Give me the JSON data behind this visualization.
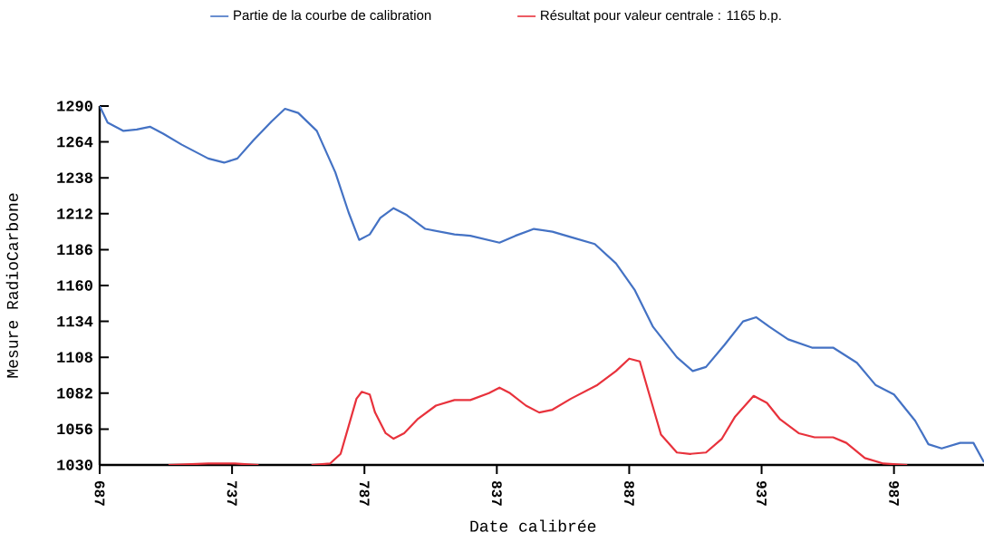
{
  "chart_data": {
    "type": "line",
    "xlabel": "Date calibrée",
    "ylabel": "Mesure RadioCarbone",
    "xlim": [
      687,
      1021
    ],
    "ylim": [
      1030,
      1290
    ],
    "xticks": [
      687,
      737,
      787,
      837,
      887,
      937,
      987
    ],
    "yticks": [
      1030,
      1056,
      1082,
      1108,
      1134,
      1160,
      1186,
      1212,
      1238,
      1264,
      1290
    ],
    "legend": "top",
    "grid": false,
    "marker": "none",
    "line_style": "solid",
    "series": [
      {
        "name": "Partie de la courbe de calibration",
        "color": "#4472c4",
        "x": [
          687,
          690,
          696,
          701,
          706,
          711,
          718,
          728,
          734,
          739,
          745,
          752,
          757,
          762,
          769,
          776,
          781,
          785,
          789,
          793,
          798,
          803,
          810,
          821,
          827,
          838,
          844,
          851,
          858,
          865,
          874,
          882,
          889,
          896,
          905,
          911,
          916,
          923,
          930,
          935,
          940,
          947,
          956,
          964,
          973,
          980,
          987,
          995,
          1000,
          1005,
          1012,
          1017,
          1021
        ],
        "values": [
          1290,
          1278,
          1272,
          1273,
          1275,
          1270,
          1262,
          1252,
          1249,
          1252,
          1265,
          1279,
          1288,
          1285,
          1272,
          1242,
          1213,
          1193,
          1197,
          1209,
          1216,
          1211,
          1201,
          1197,
          1196,
          1191,
          1196,
          1201,
          1199,
          1195,
          1190,
          1176,
          1157,
          1130,
          1108,
          1098,
          1101,
          1117,
          1134,
          1137,
          1130,
          1121,
          1115,
          1115,
          1104,
          1088,
          1081,
          1062,
          1045,
          1042,
          1046,
          1046,
          1032
        ]
      },
      {
        "name": "Résultat pour valeur centrale : 1165 b.p.",
        "color": "#e8323c",
        "x": [
          713,
          728,
          738,
          747,
          757,
          767,
          774,
          778,
          781,
          784,
          786,
          789,
          791,
          795,
          798,
          802,
          807,
          814,
          821,
          827,
          834,
          838,
          842,
          848,
          853,
          858,
          865,
          875,
          882,
          887,
          891,
          894,
          899,
          905,
          910,
          916,
          922,
          927,
          934,
          939,
          944,
          951,
          957,
          964,
          969,
          976,
          983,
          992
        ],
        "values": [
          1030,
          1031,
          1031,
          1030,
          null,
          1030,
          1031,
          1038,
          1058,
          1078,
          1083,
          1081,
          1068,
          1053,
          1049,
          1053,
          1063,
          1073,
          1077,
          1077,
          1082,
          1086,
          1082,
          1073,
          1068,
          1070,
          1078,
          1088,
          1098,
          1107,
          1105,
          1085,
          1052,
          1039,
          1038,
          1039,
          1049,
          1065,
          1080,
          1075,
          1063,
          1053,
          1050,
          1050,
          1046,
          1035,
          1031,
          1030
        ]
      }
    ]
  }
}
